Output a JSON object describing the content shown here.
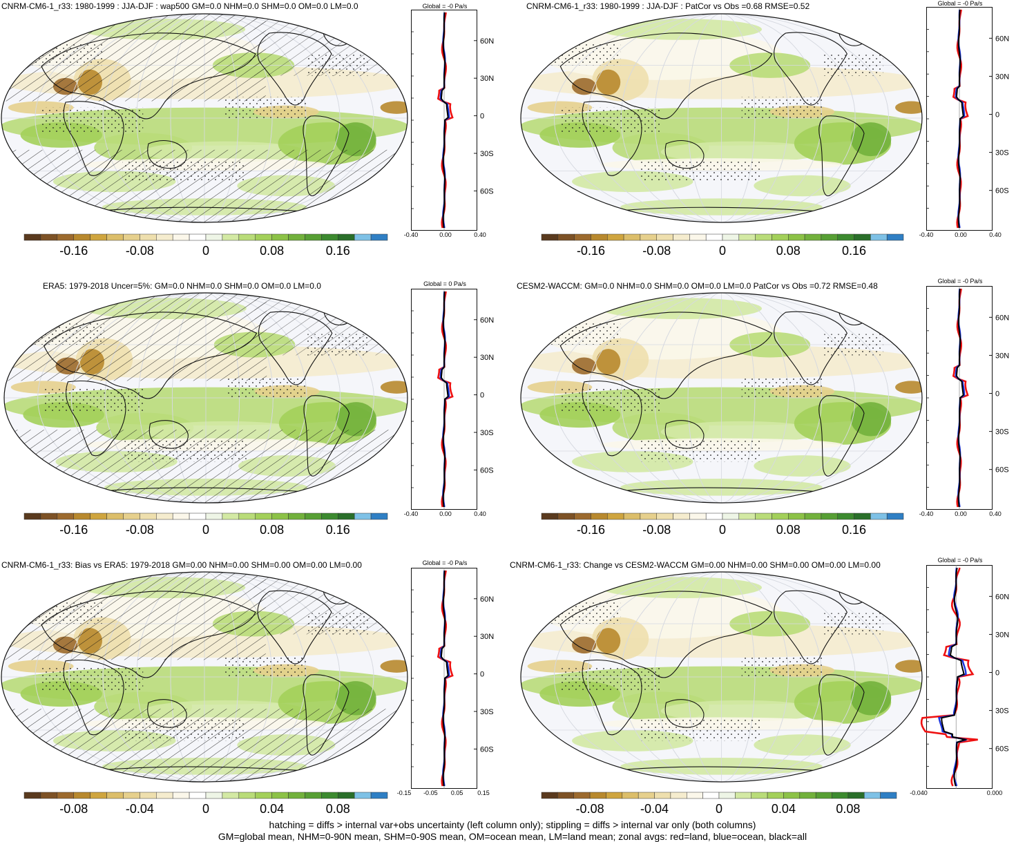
{
  "panels": [
    {
      "title": "CNRM-CM6-1_r33: 1980-1999 : JJA-DJF : wap500 GM=0.0 NHM=0.0 SHM=0.0 OM=0.0 LM=0.0",
      "zonal_title": "Global = -0 Pa/s",
      "colorbar_labels": [
        "-0.16",
        "-0.08",
        "0",
        "0.08",
        "0.16"
      ],
      "zonal_xticks": [
        "-0.40",
        "0.00",
        "0.40"
      ],
      "hatching": true
    },
    {
      "title": "CNRM-CM6-1_r33: 1980-1999 : JJA-DJF : PatCor vs Obs =0.68 RMSE=0.52",
      "zonal_title": "Global = -0 Pa/s",
      "colorbar_labels": [
        "-0.16",
        "-0.08",
        "0",
        "0.08",
        "0.16"
      ],
      "zonal_xticks": [
        "-0.40",
        "0.00",
        "0.40"
      ],
      "hatching": false
    },
    {
      "title": "ERA5: 1979-2018 Uncer=5%: GM=0.0 NHM=0.0 SHM=0.0 OM=0.0 LM=0.0",
      "zonal_title": "Global = 0 Pa/s",
      "colorbar_labels": [
        "-0.16",
        "-0.08",
        "0",
        "0.08",
        "0.16"
      ],
      "zonal_xticks": [
        "-0.40",
        "0.00",
        "0.40"
      ],
      "hatching": true
    },
    {
      "title": "CESM2-WACCM: GM=0.0 NHM=0.0 SHM=0.0 OM=0.0 LM=0.0 PatCor vs Obs =0.72 RMSE=0.48",
      "zonal_title": "Global = -0 Pa/s",
      "colorbar_labels": [
        "-0.16",
        "-0.08",
        "0",
        "0.08",
        "0.16"
      ],
      "zonal_xticks": [
        "-0.40",
        "0.00",
        "0.40"
      ],
      "hatching": false
    },
    {
      "title": "CNRM-CM6-1_r33: Bias vs ERA5: 1979-2018 GM=0.00 NHM=0.00 SHM=0.00 OM=0.00 LM=0.00",
      "zonal_title": "Global = -0 Pa/s",
      "colorbar_labels": [
        "-0.08",
        "-0.04",
        "0",
        "0.04",
        "0.08"
      ],
      "zonal_xticks": [
        "-0.15",
        "-0.05",
        "0.05",
        "0.15"
      ],
      "hatching": true
    },
    {
      "title": "CNRM-CM6-1_r33: Change vs CESM2-WACCM GM=0.00 NHM=0.00 SHM=0.00 OM=0.00 LM=0.00",
      "zonal_title": "Global = -0 Pa/s",
      "colorbar_labels": [
        "-0.08",
        "-0.04",
        "0",
        "0.04",
        "0.08"
      ],
      "zonal_xticks": [
        "-0.040",
        "0.000"
      ],
      "hatching": false
    }
  ],
  "lat_labels": [
    "60N",
    "30N",
    "0",
    "30S",
    "60S"
  ],
  "colors": {
    "palette": [
      "#5a3a1e",
      "#7d5226",
      "#9c6a2e",
      "#b8892e",
      "#cfa53f",
      "#dcbe6a",
      "#e6d08d",
      "#eedfae",
      "#f5ecce",
      "#fbf7ea",
      "#ffffff",
      "#eef5e6",
      "#d3e9a4",
      "#b9dc79",
      "#a3d05a",
      "#8cc247",
      "#72b13c",
      "#579f34",
      "#3c8a2f",
      "#2a6f2a",
      "#7ec1e6",
      "#2f7fc4"
    ],
    "land": "#e85a2a",
    "ocean": "#2040c8",
    "all": "#000000",
    "zonal_red": "#ee1111",
    "zonal_blue": "#1a33dd"
  },
  "footer": {
    "line1": "hatching = diffs > internal var+obs uncertainty (left column only); stippling = diffs > internal var only (both columns)",
    "line2": "GM=global mean, NHM=0-90N mean, SHM=0-90S mean, OM=ocean mean, LM=land mean; zonal avgs: red=land, blue=ocean, black=all"
  }
}
